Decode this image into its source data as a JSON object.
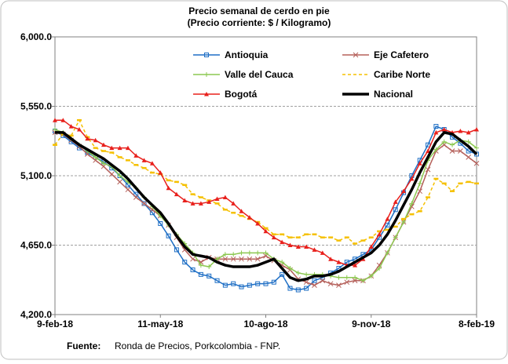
{
  "chart_data": {
    "type": "line",
    "title": "Precio semanal de cerdo en pie",
    "subtitle": "(Precio corriente: $ / Kilogramo)",
    "source_label": "Fuente:",
    "source": "Ronda de Precios, Porkcolombia  - FNP.",
    "categories": [
      "9-feb-18",
      null,
      null,
      null,
      null,
      null,
      null,
      null,
      null,
      null,
      null,
      null,
      null,
      "11-may-18",
      null,
      null,
      null,
      null,
      null,
      null,
      null,
      null,
      null,
      null,
      null,
      null,
      "10-ago-18",
      null,
      null,
      null,
      null,
      null,
      null,
      null,
      null,
      null,
      null,
      null,
      null,
      "9-nov-18",
      null,
      null,
      null,
      null,
      null,
      null,
      null,
      null,
      null,
      null,
      null,
      null,
      "8-feb-19"
    ],
    "ylim": [
      4200,
      6000
    ],
    "yticks": [
      {
        "value": 4200,
        "label": "4,200.0"
      },
      {
        "value": 4650,
        "label": "4,650.0"
      },
      {
        "value": 5100,
        "label": "5,100.0"
      },
      {
        "value": 5550,
        "label": "5,550.0"
      },
      {
        "value": 6000,
        "label": "6,000.0"
      }
    ],
    "grid": true,
    "legend": "top",
    "series": [
      {
        "name": "Antioquia",
        "color": "#1f6fc5",
        "marker": "square",
        "values": [
          5390,
          5360,
          5320,
          5280,
          5250,
          5220,
          5190,
          5150,
          5100,
          5040,
          4980,
          4920,
          4860,
          4790,
          4710,
          4620,
          4540,
          4490,
          4460,
          4450,
          4420,
          4390,
          4400,
          4380,
          4390,
          4400,
          4400,
          4410,
          4460,
          4370,
          4360,
          4370,
          4420,
          4440,
          4470,
          4500,
          4540,
          4560,
          4590,
          4620,
          4700,
          4780,
          4880,
          4990,
          5100,
          5200,
          5300,
          5420,
          5400,
          5350,
          5310,
          5260,
          5240
        ]
      },
      {
        "name": "Eje Cafetero",
        "color": "#b5605a",
        "marker": "x",
        "values": [
          5380,
          5370,
          5330,
          5290,
          5240,
          5200,
          5160,
          5110,
          5060,
          5010,
          4960,
          4920,
          4880,
          4840,
          4780,
          4700,
          4620,
          4560,
          4540,
          4570,
          4560,
          4560,
          4560,
          4560,
          4560,
          4560,
          4580,
          4550,
          4520,
          4490,
          4430,
          4410,
          4390,
          4420,
          4400,
          4390,
          4410,
          4420,
          4420,
          4450,
          4520,
          4600,
          4700,
          4800,
          4900,
          5000,
          5140,
          5260,
          5300,
          5260,
          5260,
          5220,
          5180
        ]
      },
      {
        "name": "Valle del Cauca",
        "color": "#8cc850",
        "marker": "plus",
        "values": [
          5400,
          5380,
          5340,
          5300,
          5260,
          5220,
          5180,
          5160,
          5100,
          5060,
          5020,
          4960,
          4900,
          4840,
          4780,
          4720,
          4660,
          4600,
          4520,
          4510,
          4560,
          4590,
          4590,
          4600,
          4600,
          4600,
          4600,
          4560,
          4540,
          4500,
          4470,
          4460,
          4460,
          4460,
          4450,
          4440,
          4440,
          4440,
          4420,
          4450,
          4500,
          4600,
          4700,
          4800,
          4920,
          5050,
          5200,
          5270,
          5320,
          5300,
          5330,
          5320,
          5280
        ]
      },
      {
        "name": "Caribe Norte",
        "color": "#f5c000",
        "marker": "dash",
        "values": [
          5300,
          5370,
          5360,
          5460,
          5350,
          5280,
          5260,
          5250,
          5220,
          5200,
          5170,
          5150,
          5120,
          5110,
          5070,
          5060,
          5040,
          4980,
          4960,
          4940,
          4920,
          4880,
          4860,
          4840,
          4820,
          4800,
          4760,
          4720,
          4720,
          4700,
          4700,
          4720,
          4720,
          4700,
          4700,
          4680,
          4700,
          4660,
          4680,
          4700,
          4740,
          4750,
          4770,
          4820,
          4850,
          4870,
          4960,
          5080,
          5050,
          5000,
          5050,
          5060,
          5050
        ]
      },
      {
        "name": "Bogotá",
        "color": "#e8201c",
        "marker": "triangle",
        "values": [
          5460,
          5460,
          5420,
          5400,
          5340,
          5330,
          5300,
          5280,
          5280,
          5280,
          5230,
          5200,
          5180,
          5120,
          5020,
          4980,
          4940,
          4920,
          4920,
          4930,
          4950,
          4960,
          4920,
          4870,
          4830,
          4790,
          4740,
          4700,
          4670,
          4650,
          4640,
          4640,
          4620,
          4600,
          4560,
          4540,
          4520,
          4520,
          4560,
          4640,
          4720,
          4820,
          4930,
          5000,
          5080,
          5180,
          5260,
          5380,
          5400,
          5380,
          5390,
          5380,
          5400
        ]
      },
      {
        "name": "Nacional",
        "color": "#000000",
        "marker": "none",
        "values": [
          5380,
          5380,
          5340,
          5300,
          5270,
          5240,
          5210,
          5170,
          5130,
          5080,
          5020,
          4960,
          4910,
          4860,
          4790,
          4710,
          4640,
          4590,
          4580,
          4570,
          4540,
          4520,
          4510,
          4510,
          4510,
          4520,
          4540,
          4560,
          4500,
          4440,
          4420,
          4430,
          4450,
          4450,
          4460,
          4480,
          4510,
          4540,
          4570,
          4600,
          4650,
          4720,
          4810,
          4910,
          5010,
          5120,
          5220,
          5320,
          5380,
          5370,
          5330,
          5290,
          5240
        ]
      }
    ]
  }
}
